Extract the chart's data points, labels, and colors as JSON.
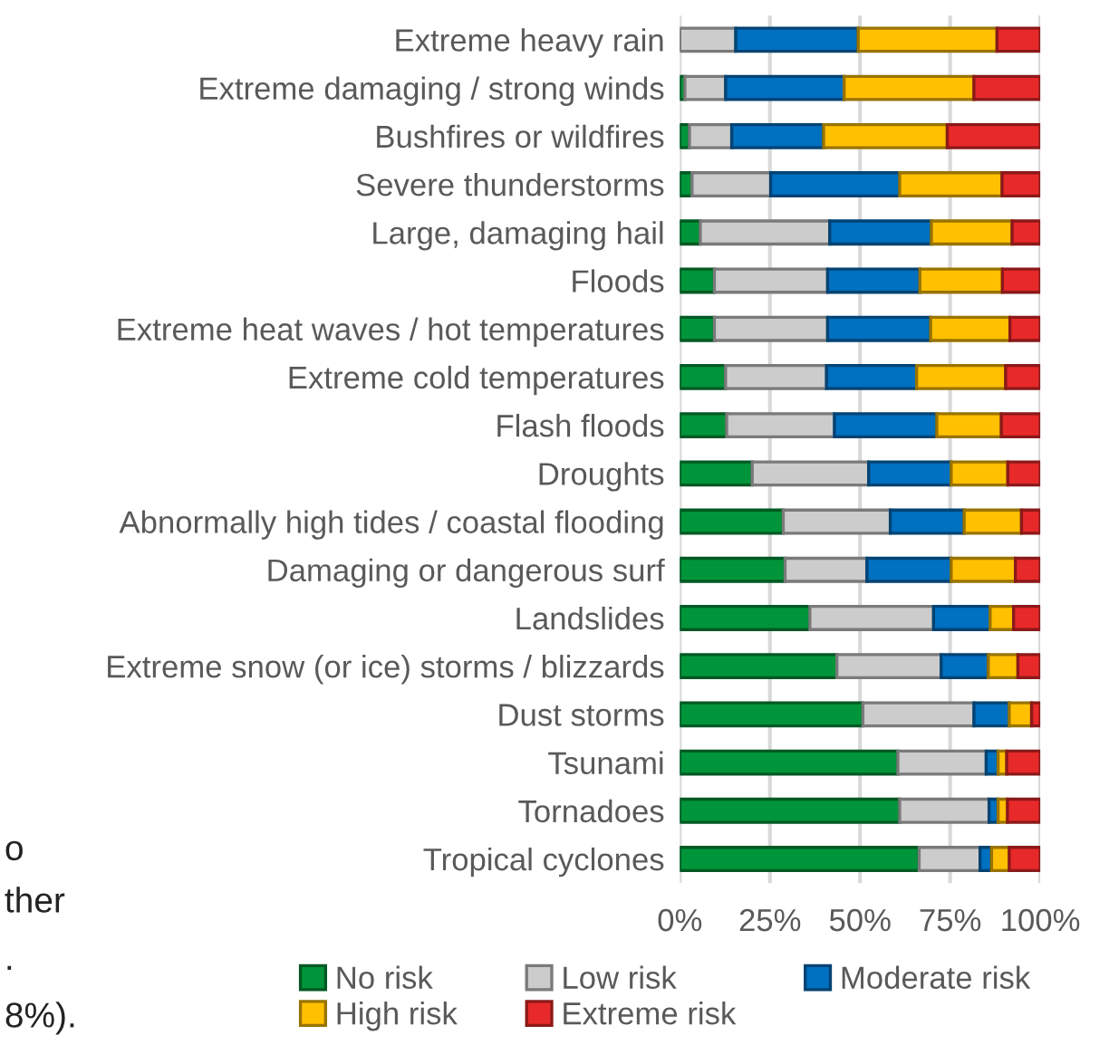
{
  "chart_data": {
    "type": "bar",
    "orientation": "horizontal",
    "stacked": true,
    "categories": [
      "Extreme heavy rain",
      "Extreme damaging / strong winds",
      "Bushfires or wildfires",
      "Severe thunderstorms",
      "Large, damaging hail",
      "Floods",
      "Extreme heat waves / hot temperatures",
      "Extreme cold temperatures",
      "Flash floods",
      "Droughts",
      "Abnormally high tides / coastal flooding",
      "Damaging or dangerous surf",
      "Landslides",
      "Extreme snow (or ice) storms / blizzards",
      "Dust storms",
      "Tsunami",
      "Tornadoes",
      "Tropical cyclones"
    ],
    "series": [
      {
        "name": "No risk",
        "color": "#00953a",
        "values": [
          0,
          1.4,
          2.7,
          3.4,
          5.7,
          9.6,
          9.6,
          12.7,
          13,
          20.1,
          28.7,
          29.2,
          36.1,
          43.6,
          50.8,
          60.5,
          61,
          66.4
        ]
      },
      {
        "name": "Low risk",
        "color": "#cccccc",
        "values": [
          15.5,
          11.3,
          11.7,
          21.8,
          35.9,
          31.4,
          31.4,
          28,
          29.9,
          32.3,
          29.7,
          22.7,
          34.3,
          28.9,
          30.8,
          24.5,
          24.8,
          16.9
        ]
      },
      {
        "name": "Moderate risk",
        "color": "#0070c0",
        "values": [
          34,
          32.9,
          25.5,
          35.8,
          28.2,
          25.6,
          28.6,
          25,
          28.4,
          22.9,
          20.5,
          23.4,
          15.7,
          13.1,
          9.8,
          3.3,
          2.5,
          3.2
        ]
      },
      {
        "name": "High risk",
        "color": "#ffc000",
        "values": [
          38.5,
          36,
          34.3,
          28.4,
          22.4,
          22.9,
          22,
          24.7,
          17.9,
          15.7,
          15.9,
          17.8,
          6.5,
          8.2,
          6.2,
          2.4,
          2.6,
          4.9
        ]
      },
      {
        "name": "Extreme risk",
        "color": "#e8292a",
        "values": [
          12,
          18.4,
          25.8,
          10.6,
          7.8,
          10.5,
          8.4,
          9.6,
          10.8,
          9,
          5.2,
          6.9,
          7.4,
          6.2,
          2.4,
          9.3,
          9.1,
          8.6
        ]
      }
    ],
    "xlim": [
      0,
      100
    ],
    "xticks": [
      {
        "value": 0,
        "label": "0%"
      },
      {
        "value": 25,
        "label": "25%"
      },
      {
        "value": 50,
        "label": "50%"
      },
      {
        "value": 75,
        "label": "75%"
      },
      {
        "value": 100,
        "label": "100%"
      }
    ],
    "grid": "x",
    "legend": "bottom",
    "annotations": [
      "o",
      "ther",
      ".",
      "8%)."
    ]
  }
}
